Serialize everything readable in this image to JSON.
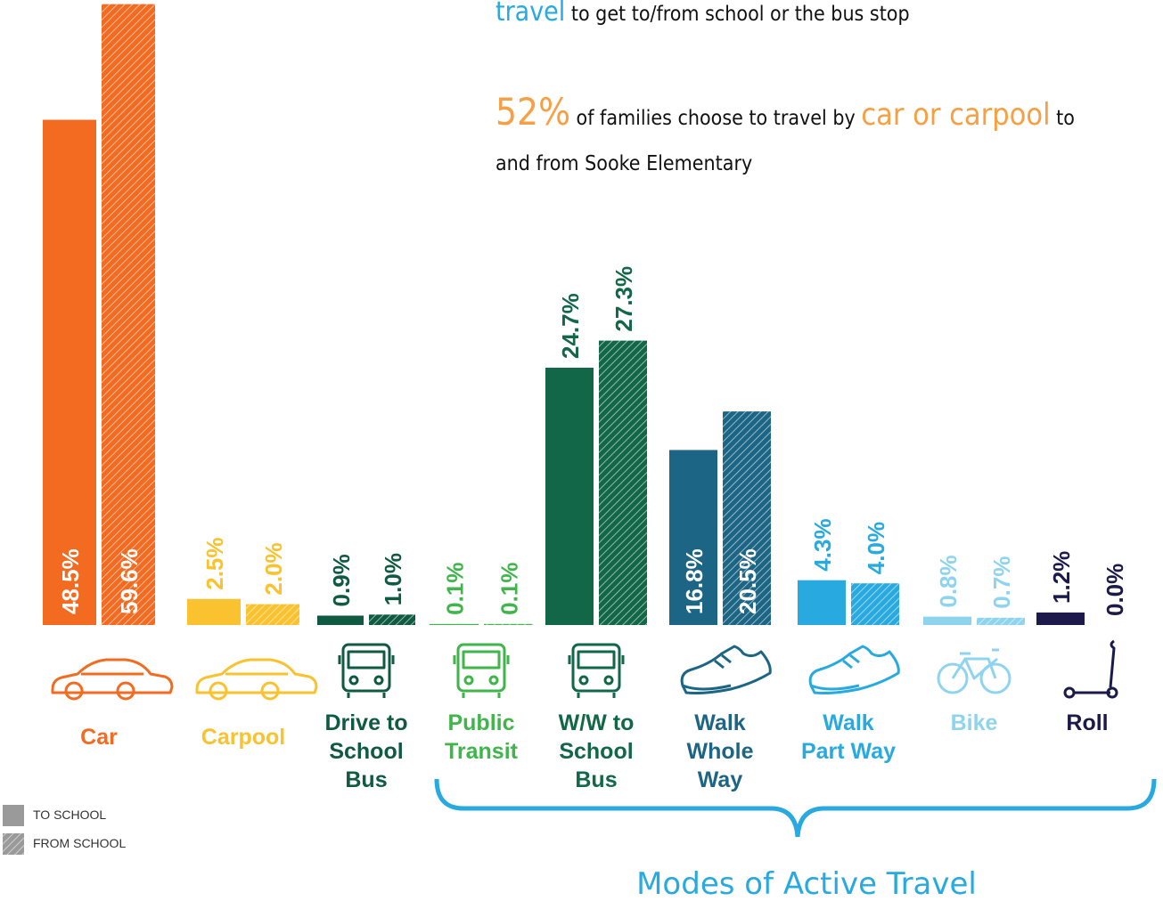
{
  "chart_data": {
    "type": "bar",
    "notes": [
      [
        {
          "text": "travel",
          "style": "hl"
        },
        {
          "text": " to get to/from school or the bus stop",
          "style": "plain"
        }
      ],
      [
        {
          "text": "52%",
          "style": "big"
        },
        {
          "text": "  of families choose to travel by ",
          "style": "plain"
        },
        {
          "text": "car or carpool",
          "style": "hl2"
        },
        {
          "text": " to",
          "style": "plain"
        }
      ],
      [
        {
          "text": "and from Sooke Elementary",
          "style": "plain"
        }
      ]
    ],
    "categories": [
      [
        "Car"
      ],
      [
        "Carpool"
      ],
      [
        "Drive to",
        "School",
        "Bus"
      ],
      [
        "Public",
        "Transit"
      ],
      [
        "W/W to",
        "School",
        "Bus"
      ],
      [
        "Walk",
        "Whole",
        "Way"
      ],
      [
        "Walk",
        "Part Way"
      ],
      [
        "Bike"
      ],
      [
        "Roll"
      ]
    ],
    "colors": [
      "#f26b21",
      "#f9c22e",
      "#0f5a40",
      "#3fb54a",
      "#116748",
      "#1c6584",
      "#28a9df",
      "#8fd4ef",
      "#1b1a4a"
    ],
    "series": [
      {
        "name": "TO SCHOOL",
        "color": "#9a9a9a",
        "hatched": false,
        "values": [
          48.5,
          2.5,
          0.9,
          0.1,
          24.7,
          16.8,
          4.3,
          0.8,
          1.2
        ],
        "value_labels": [
          "48.5%",
          "2.5%",
          "0.9%",
          "0.1%",
          "24.7%",
          "16.8%",
          "4.3%",
          "0.8%",
          "1.2%"
        ]
      },
      {
        "name": "FROM SCHOOL",
        "color": "#9a9a9a",
        "hatched": true,
        "values": [
          59.6,
          2.0,
          1.0,
          0.1,
          27.3,
          20.5,
          4.0,
          0.7,
          0.0
        ],
        "value_labels": [
          "59.6%",
          "2.0%",
          "1.0%",
          "0.1%",
          "27.3%",
          "20.5%",
          "4.0%",
          "0.7%",
          "0.0%"
        ]
      }
    ],
    "ylim": [
      0,
      60
    ],
    "bracket_label": "Modes of Active Travel"
  }
}
